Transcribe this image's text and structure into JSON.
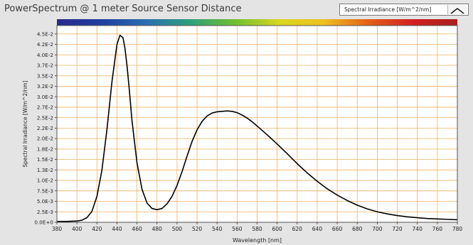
{
  "chart_title": "PowerSpectrum @ 1 meter Source Sensor Distance",
  "legend": {
    "label": "Spectral Irradiance [W/m^2/nm]",
    "icon": "line-plot-icon"
  },
  "colors": {
    "plot_background": "#ffffff",
    "grid": "#f0b060",
    "line": "#000000",
    "panel": "#e4e4e4",
    "spectrum_stops": [
      "#2a2a8c",
      "#1f3f9f",
      "#2a6fb0",
      "#2f9f7a",
      "#6fbf2f",
      "#d8d820",
      "#f0c020",
      "#e36018",
      "#d22020",
      "#a82020"
    ]
  },
  "chart_data": {
    "type": "line",
    "title": "PowerSpectrum @ 1 meter Source Sensor Distance",
    "xlabel": "Wavelength [nm]",
    "ylabel": "Spectral Irradiance [W/m^2/nm]",
    "xlim": [
      380,
      780
    ],
    "ylim": [
      0,
      0.047
    ],
    "grid": true,
    "legend_position": "top-right",
    "x_ticks": [
      380,
      400,
      420,
      440,
      460,
      480,
      500,
      520,
      540,
      560,
      580,
      600,
      620,
      640,
      660,
      680,
      700,
      720,
      740,
      760,
      780
    ],
    "x_tick_labels": [
      "380",
      "400",
      "420",
      "440",
      "460",
      "480",
      "500",
      "520",
      "540",
      "560",
      "580",
      "600",
      "620",
      "640",
      "660",
      "680",
      "700",
      "720",
      "740",
      "760",
      "780"
    ],
    "y_ticks": [
      0,
      0.0025,
      0.005,
      0.0075,
      0.01,
      0.0125,
      0.015,
      0.0175,
      0.02,
      0.0225,
      0.025,
      0.0275,
      0.03,
      0.0325,
      0.035,
      0.0375,
      0.04,
      0.0425,
      0.045
    ],
    "y_tick_labels": [
      "0.0E+0",
      "2.5E-3",
      "5.0E-3",
      "7.5E-3",
      "1.0E-2",
      "1.3E-2",
      "1.5E-2",
      "1.8E-2",
      "2.0E-2",
      "2.2E-2",
      "2.5E-2",
      "2.7E-2",
      "3.0E-2",
      "3.2E-2",
      "3.5E-2",
      "3.7E-2",
      "4.0E-2",
      "4.2E-2",
      "4.5E-2"
    ],
    "series": [
      {
        "name": "Spectral Irradiance [W/m^2/nm]",
        "x": [
          380,
          390,
          400,
          405,
          410,
          415,
          420,
          425,
          430,
          435,
          440,
          443,
          446,
          448,
          450,
          452,
          455,
          460,
          465,
          470,
          475,
          480,
          485,
          490,
          495,
          500,
          505,
          510,
          515,
          520,
          525,
          530,
          535,
          540,
          545,
          550,
          555,
          560,
          565,
          570,
          575,
          580,
          590,
          600,
          610,
          620,
          630,
          640,
          650,
          660,
          670,
          680,
          690,
          700,
          710,
          720,
          730,
          740,
          750,
          760,
          770,
          780
        ],
        "y": [
          0.0002,
          0.0002,
          0.0003,
          0.0005,
          0.0011,
          0.0026,
          0.0062,
          0.0125,
          0.0222,
          0.0336,
          0.0425,
          0.0447,
          0.0441,
          0.0415,
          0.0375,
          0.0325,
          0.0243,
          0.0142,
          0.0079,
          0.0046,
          0.0033,
          0.003,
          0.0033,
          0.0044,
          0.0062,
          0.0088,
          0.0121,
          0.0158,
          0.0193,
          0.0221,
          0.0241,
          0.0254,
          0.0261,
          0.0264,
          0.0265,
          0.0266,
          0.0265,
          0.0262,
          0.0256,
          0.0249,
          0.024,
          0.023,
          0.0209,
          0.0187,
          0.0164,
          0.014,
          0.0118,
          0.0098,
          0.008,
          0.0065,
          0.0052,
          0.0041,
          0.0032,
          0.0025,
          0.002,
          0.0016,
          0.0013,
          0.0011,
          0.0009,
          0.0008,
          0.0007,
          0.0006
        ]
      }
    ]
  }
}
